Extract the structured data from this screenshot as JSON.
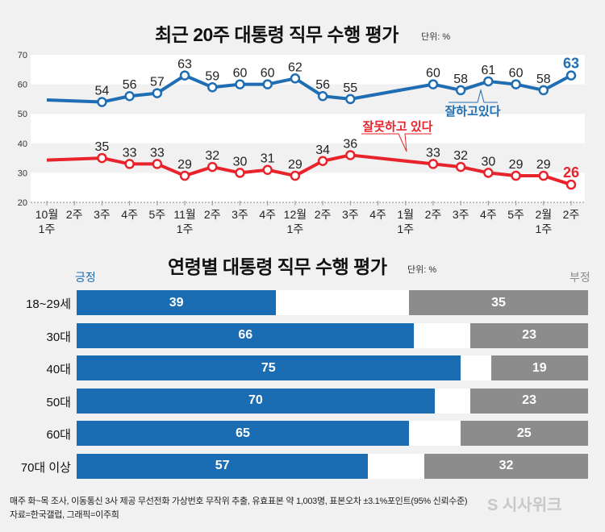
{
  "chart_data": [
    {
      "type": "line",
      "title": "최근 20주 대통령 직무 수행 평가",
      "unit": "단위: %",
      "ylim": [
        20,
        70
      ],
      "yticks": [
        "20",
        "30",
        "40",
        "50",
        "60",
        "70"
      ],
      "grid": "alternating bands",
      "categories": [
        [
          "10월",
          "1주"
        ],
        [
          "2주",
          ""
        ],
        [
          "3주",
          ""
        ],
        [
          "4주",
          ""
        ],
        [
          "5주",
          ""
        ],
        [
          "11월",
          "1주"
        ],
        [
          "2주",
          ""
        ],
        [
          "3주",
          ""
        ],
        [
          "4주",
          ""
        ],
        [
          "12월",
          "1주"
        ],
        [
          "2주",
          ""
        ],
        [
          "3주",
          ""
        ],
        [
          "4주",
          ""
        ],
        [
          "1월",
          "1주"
        ],
        [
          "2주",
          ""
        ],
        [
          "3주",
          ""
        ],
        [
          "4주",
          ""
        ],
        [
          "5주",
          ""
        ],
        [
          "2월",
          "1주"
        ],
        [
          "2주",
          ""
        ]
      ],
      "series": [
        {
          "name": "잘하고있다",
          "color": "#1f6db3",
          "values": [
            54.7,
            null,
            54,
            56,
            57,
            63,
            59,
            60,
            60,
            62,
            56,
            55,
            null,
            null,
            60,
            58,
            61,
            60,
            58,
            63
          ],
          "labels": [
            "",
            "",
            "54",
            "56",
            "57",
            "63",
            "59",
            "60",
            "60",
            "62",
            "56",
            "55",
            "",
            "",
            "60",
            "58",
            "61",
            "60",
            "58",
            "63"
          ]
        },
        {
          "name": "잘못하고 있다",
          "color": "#e8232b",
          "values": [
            34.3,
            null,
            35,
            33,
            33,
            29,
            32,
            30,
            31,
            29,
            34,
            36,
            null,
            null,
            33,
            32,
            30,
            29,
            29,
            26
          ],
          "labels": [
            "",
            "",
            "35",
            "33",
            "33",
            "29",
            "32",
            "30",
            "31",
            "29",
            "34",
            "36",
            "",
            "",
            "33",
            "32",
            "30",
            "29",
            "29",
            "26"
          ]
        }
      ]
    },
    {
      "type": "bar",
      "title": "연령별 대통령 직무 수행 평가",
      "unit": "단위: %",
      "positive_label": "긍정",
      "negative_label": "부정",
      "positive_color": "#1b6db3",
      "negative_color": "#8c8c8c",
      "categories": [
        "18~29세",
        "30대",
        "40대",
        "50대",
        "60대",
        "70대 이상"
      ],
      "series": [
        {
          "name": "긍정",
          "values": [
            39,
            66,
            75,
            70,
            65,
            57
          ]
        },
        {
          "name": "부정",
          "values": [
            35,
            23,
            19,
            23,
            25,
            32
          ]
        }
      ]
    }
  ],
  "footer": {
    "line1": "매주 화~목 조사, 이동통신 3사 제공 무선전화 가상번호 무작위 추출, 유효표본 약 1,003명, 표본오차 ±3.1%포인트(95% 신뢰수준)",
    "line2": "자료=한국갤럽, 그래픽=이주희",
    "logo": "시사위크"
  }
}
